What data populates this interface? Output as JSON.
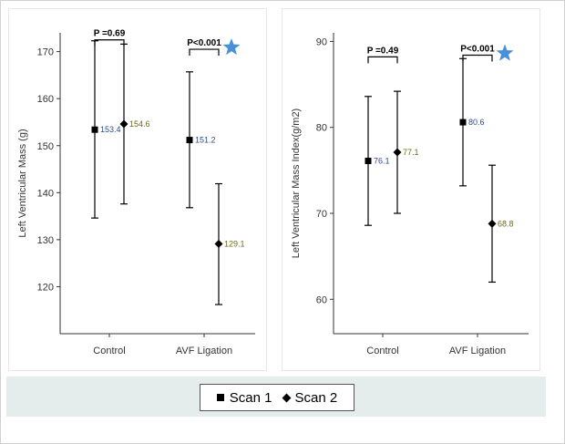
{
  "chart_data": [
    {
      "type": "scatter",
      "ylabel": "Left Ventricular Mass (g)",
      "categories": [
        "Control",
        "AVF Ligation"
      ],
      "ylim": [
        110,
        174
      ],
      "yticks": [
        120,
        130,
        140,
        150,
        160,
        170
      ],
      "grid": false,
      "series": [
        {
          "name": "Scan 1",
          "marker": "square",
          "means": [
            153.4,
            151.2
          ],
          "lower": [
            134.6,
            136.8
          ],
          "upper": [
            172.3,
            165.7
          ],
          "label_color": "#2e4a8c"
        },
        {
          "name": "Scan 2",
          "marker": "diamond",
          "means": [
            154.6,
            129.1
          ],
          "lower": [
            137.6,
            116.2
          ],
          "upper": [
            171.6,
            141.9
          ],
          "label_color": "#6b6b1e"
        }
      ],
      "brackets": [
        {
          "category": "Control",
          "label": "P =0.69",
          "y": 172.5,
          "star": false
        },
        {
          "category": "AVF Ligation",
          "label": "P<0.001",
          "y": 170.5,
          "star": true
        }
      ]
    },
    {
      "type": "scatter",
      "ylabel": "Left Ventricular Mass Index(g/m2)",
      "categories": [
        "Control",
        "AVF Ligation"
      ],
      "ylim": [
        56,
        91
      ],
      "yticks": [
        60,
        70,
        80,
        90
      ],
      "grid": false,
      "series": [
        {
          "name": "Scan 1",
          "marker": "square",
          "means": [
            76.1,
            80.6
          ],
          "lower": [
            68.6,
            73.2
          ],
          "upper": [
            83.6,
            88.0
          ],
          "label_color": "#2e4a8c"
        },
        {
          "name": "Scan 2",
          "marker": "diamond",
          "means": [
            77.1,
            68.8
          ],
          "lower": [
            70.0,
            62.0
          ],
          "upper": [
            84.2,
            75.6
          ],
          "label_color": "#6b6b1e"
        }
      ],
      "brackets": [
        {
          "category": "Control",
          "label": "P =0.49",
          "y": 88.2,
          "star": false
        },
        {
          "category": "AVF Ligation",
          "label": "P<0.001",
          "y": 88.4,
          "star": true
        }
      ]
    }
  ],
  "legend": {
    "items": [
      {
        "label": "Scan 1",
        "marker": "square"
      },
      {
        "label": "Scan 2",
        "marker": "diamond"
      }
    ]
  },
  "colors": {
    "star": "#4a90d9",
    "scan1_label": "#2e4a8c",
    "scan2_label": "#6b6b1e",
    "legend_bar": "#e5ecec"
  }
}
